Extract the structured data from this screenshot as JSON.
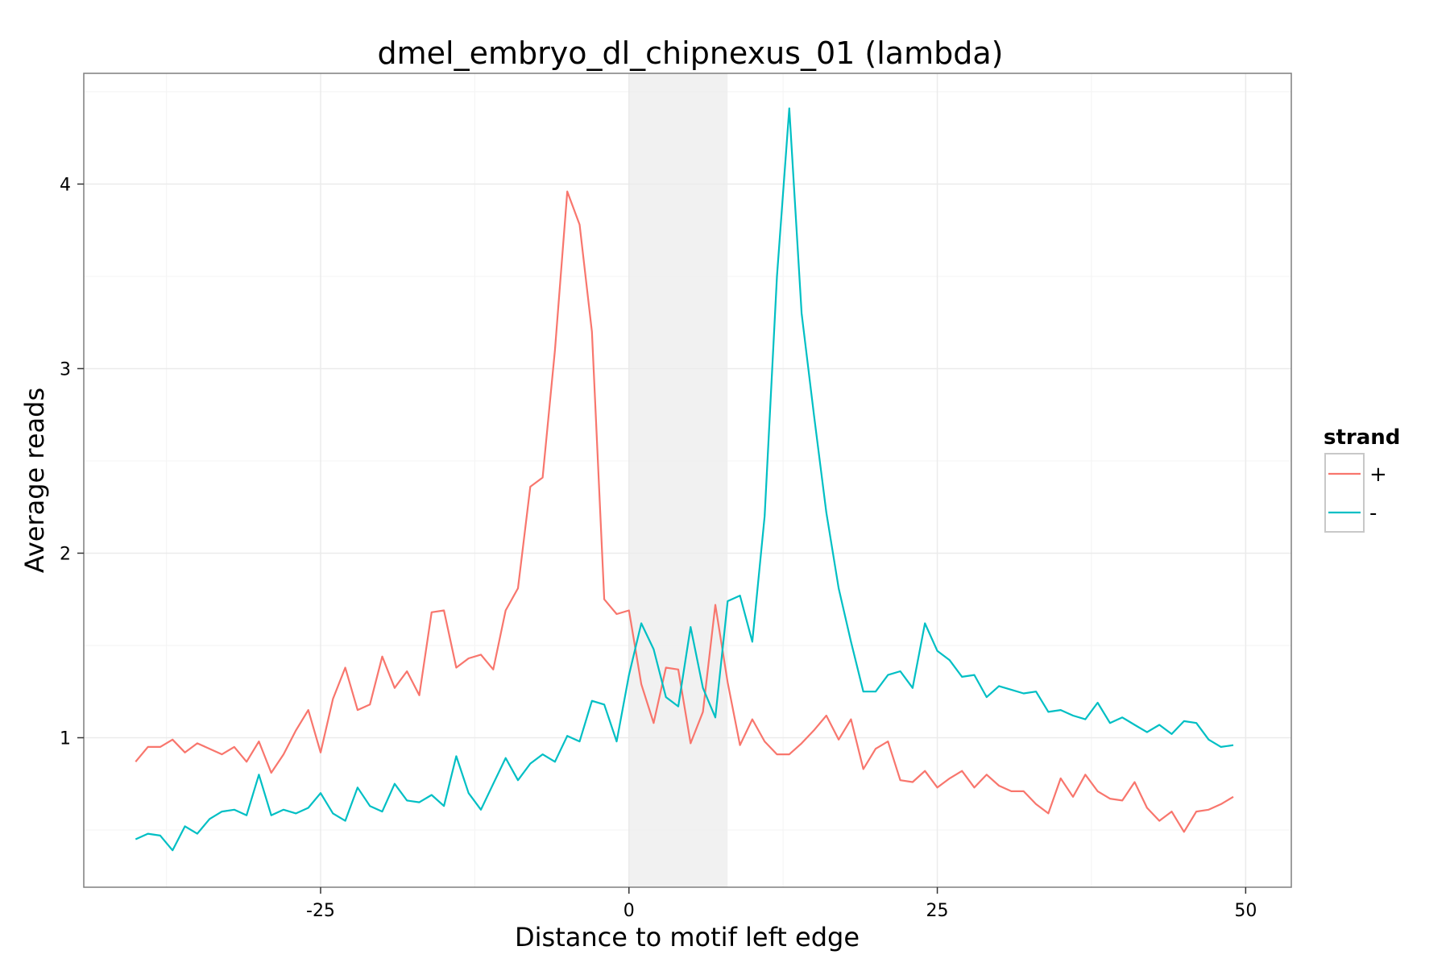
{
  "chart_data": {
    "type": "line",
    "title": "dmel_embryo_dl_chipnexus_01 (lambda)",
    "xlabel": "Distance to motif left edge",
    "ylabel": "Average reads",
    "xlim": [
      -44.2,
      53.7
    ],
    "ylim": [
      0.19,
      4.6
    ],
    "x_ticks": [
      -25,
      0,
      25,
      50
    ],
    "x_tick_labels": [
      "-25",
      "0",
      "25",
      "50"
    ],
    "y_ticks": [
      1,
      2,
      3,
      4
    ],
    "y_tick_labels": [
      "1",
      "2",
      "3",
      "4"
    ],
    "grid": true,
    "shaded_region": {
      "x_start": 0,
      "x_end": 8
    },
    "legend": {
      "title": "strand",
      "position": "right",
      "entries": [
        {
          "label": "+",
          "color": "#F8766D"
        },
        {
          "label": "-",
          "color": "#00BFC4"
        }
      ]
    },
    "x": [
      -40,
      -39,
      -38,
      -37,
      -36,
      -35,
      -34,
      -33,
      -32,
      -31,
      -30,
      -29,
      -28,
      -27,
      -26,
      -25,
      -24,
      -23,
      -22,
      -21,
      -20,
      -19,
      -18,
      -17,
      -16,
      -15,
      -14,
      -13,
      -12,
      -11,
      -10,
      -9,
      -8,
      -7,
      -6,
      -5,
      -4,
      -3,
      -2,
      -1,
      0,
      1,
      2,
      3,
      4,
      5,
      6,
      7,
      8,
      9,
      10,
      11,
      12,
      13,
      14,
      15,
      16,
      17,
      18,
      19,
      20,
      21,
      22,
      23,
      24,
      25,
      26,
      27,
      28,
      29,
      30,
      31,
      32,
      33,
      34,
      35,
      36,
      37,
      38,
      39,
      40,
      41,
      42,
      43,
      44,
      45,
      46,
      47,
      48,
      49
    ],
    "series": [
      {
        "name": "+",
        "color": "#F8766D",
        "values": [
          0.87,
          0.95,
          0.95,
          0.99,
          0.92,
          0.97,
          0.94,
          0.91,
          0.95,
          0.87,
          0.98,
          0.81,
          0.91,
          1.04,
          1.15,
          0.92,
          1.21,
          1.38,
          1.15,
          1.18,
          1.44,
          1.27,
          1.36,
          1.23,
          1.68,
          1.69,
          1.38,
          1.43,
          1.45,
          1.37,
          1.69,
          1.81,
          2.36,
          2.41,
          3.1,
          3.96,
          3.78,
          3.2,
          1.75,
          1.67,
          1.69,
          1.29,
          1.08,
          1.38,
          1.37,
          0.97,
          1.14,
          1.72,
          1.3,
          0.96,
          1.1,
          0.98,
          0.91,
          0.91,
          0.97,
          1.04,
          1.12,
          0.99,
          1.1,
          0.83,
          0.94,
          0.98,
          0.77,
          0.76,
          0.82,
          0.73,
          0.78,
          0.82,
          0.73,
          0.8,
          0.74,
          0.71,
          0.71,
          0.64,
          0.59,
          0.78,
          0.68,
          0.8,
          0.71,
          0.67,
          0.66,
          0.76,
          0.62,
          0.55,
          0.6,
          0.49,
          0.6,
          0.61,
          0.64,
          0.68
        ]
      },
      {
        "name": "-",
        "color": "#00BFC4",
        "values": [
          0.45,
          0.48,
          0.47,
          0.39,
          0.52,
          0.48,
          0.56,
          0.6,
          0.61,
          0.58,
          0.8,
          0.58,
          0.61,
          0.59,
          0.62,
          0.7,
          0.59,
          0.55,
          0.73,
          0.63,
          0.6,
          0.75,
          0.66,
          0.65,
          0.69,
          0.63,
          0.9,
          0.7,
          0.61,
          0.75,
          0.89,
          0.77,
          0.86,
          0.91,
          0.87,
          1.01,
          0.98,
          1.2,
          1.18,
          0.98,
          1.34,
          1.62,
          1.48,
          1.22,
          1.17,
          1.6,
          1.27,
          1.11,
          1.74,
          1.77,
          1.52,
          2.2,
          3.5,
          4.41,
          3.3,
          2.75,
          2.22,
          1.81,
          1.52,
          1.25,
          1.25,
          1.34,
          1.36,
          1.27,
          1.62,
          1.47,
          1.42,
          1.33,
          1.34,
          1.22,
          1.28,
          1.26,
          1.24,
          1.25,
          1.14,
          1.15,
          1.12,
          1.1,
          1.19,
          1.08,
          1.11,
          1.07,
          1.03,
          1.07,
          1.02,
          1.09,
          1.08,
          0.99,
          0.95,
          0.96
        ]
      }
    ]
  }
}
